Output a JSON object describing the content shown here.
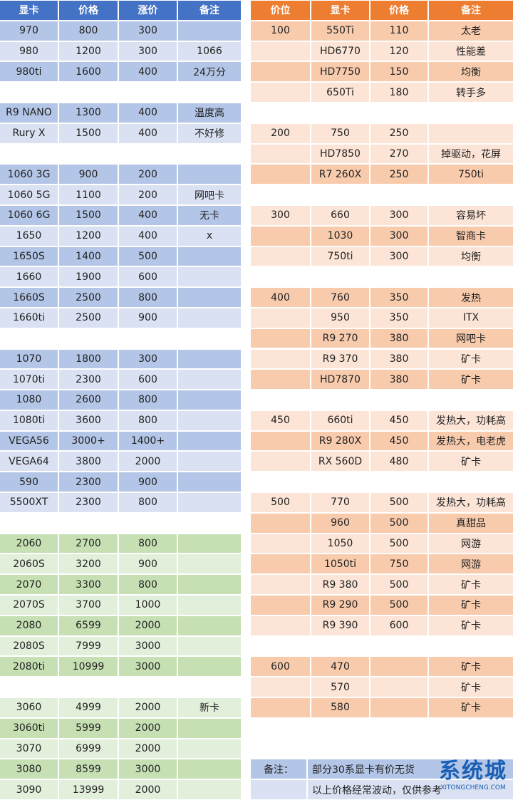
{
  "left_table": {
    "header": [
      "显卡",
      "价格",
      "涨价",
      "备注"
    ],
    "header_color": "#4472c4",
    "groups": [
      {
        "colors": [
          "#b4c6e7",
          "#d9e1f2"
        ],
        "rows": [
          [
            "970",
            "800",
            "300",
            null
          ],
          [
            "980",
            "1200",
            "300",
            "1066"
          ],
          [
            "980ti",
            "1600",
            "400",
            "24万分"
          ]
        ]
      },
      {
        "colors": [
          "#b4c6e7",
          "#d9e1f2"
        ],
        "rows": [
          [
            "R9 NANO",
            "1300",
            "400",
            "温度高"
          ],
          [
            "Rury X",
            "1500",
            "400",
            "不好修"
          ]
        ]
      },
      {
        "colors": [
          "#b4c6e7",
          "#d9e1f2"
        ],
        "rows": [
          [
            "1060 3G",
            "900",
            "200",
            null
          ],
          [
            "1060 5G",
            "1100",
            "200",
            "网吧卡"
          ],
          [
            "1060 6G",
            "1500",
            "400",
            "无卡"
          ],
          [
            "1650",
            "1200",
            "400",
            "x"
          ],
          [
            "1650S",
            "1400",
            "500",
            null
          ],
          [
            "1660",
            "1900",
            "600",
            null
          ],
          [
            "1660S",
            "2500",
            "800",
            null
          ],
          [
            "1660ti",
            "2500",
            "900",
            null
          ]
        ]
      },
      {
        "colors": [
          "#b4c6e7",
          "#d9e1f2"
        ],
        "rows": [
          [
            "1070",
            "1800",
            "300",
            null
          ],
          [
            "1070ti",
            "2300",
            "600",
            null
          ],
          [
            "1080",
            "2600",
            "800",
            null
          ],
          [
            "1080ti",
            "3600",
            "800",
            null
          ],
          [
            "VEGA56",
            "3000+",
            "1400+",
            null
          ],
          [
            "VEGA64",
            "3800",
            "2000",
            null
          ],
          [
            "590",
            "2300",
            "900",
            null
          ],
          [
            "5500XT",
            "2300",
            "800",
            null
          ]
        ]
      },
      {
        "colors": [
          "#c6e0b4",
          "#e2efda"
        ],
        "rows": [
          [
            "2060",
            "2700",
            "800",
            null
          ],
          [
            "2060S",
            "3200",
            "900",
            null
          ],
          [
            "2070",
            "3300",
            "800",
            null
          ],
          [
            "2070S",
            "3700",
            "1000",
            null
          ],
          [
            "2080",
            "6599",
            "2000",
            null
          ],
          [
            "2080S",
            "7999",
            "3000",
            null
          ],
          [
            "2080ti",
            "10999",
            "3000",
            null
          ]
        ]
      },
      {
        "colors": [
          "#e2efda",
          "#c6e0b4"
        ],
        "rows": [
          [
            "3060",
            "4999",
            "2000",
            "新卡"
          ],
          [
            "3060ti",
            "5999",
            "2000",
            null
          ],
          [
            "3070",
            "6999",
            "2000",
            null
          ],
          [
            "3080",
            "8599",
            "3000",
            null
          ],
          [
            "3090",
            "13999",
            "2000",
            null
          ]
        ]
      }
    ]
  },
  "right_table": {
    "header": [
      "价位",
      "显卡",
      "价格",
      "备注"
    ],
    "header_color": "#ed7d31",
    "groups": [
      {
        "colors": [
          "#f8cbad",
          "#fce4d6"
        ],
        "rows": [
          [
            "100",
            "550Ti",
            "110",
            "太老"
          ],
          [
            null,
            "HD6770",
            "120",
            "性能差"
          ],
          [
            null,
            "HD7750",
            "150",
            "均衡"
          ],
          [
            null,
            "650Ti",
            "180",
            "转手多"
          ]
        ]
      },
      {
        "colors": [
          "#fce4d6",
          "#fce4d6",
          "#f8cbad"
        ],
        "rows": [
          [
            "200",
            "750",
            "250",
            null
          ],
          [
            null,
            "HD7850",
            "270",
            "掉驱动，花屏"
          ],
          [
            null,
            "R7  260X",
            "250",
            "750ti"
          ]
        ]
      },
      {
        "colors": [
          "#fce4d6",
          "#f8cbad"
        ],
        "rows": [
          [
            "300",
            "660",
            "300",
            "容易坏"
          ],
          [
            null,
            "1030",
            "300",
            "智商卡"
          ],
          [
            null,
            "750ti",
            "300",
            "均衡"
          ]
        ]
      },
      {
        "colors": [
          "#f8cbad",
          "#fce4d6"
        ],
        "rows": [
          [
            "400",
            "760",
            "350",
            "发热"
          ],
          [
            null,
            "950",
            "350",
            "ITX"
          ],
          [
            null,
            "R9 270",
            "380",
            "网吧卡"
          ],
          [
            null,
            "R9 370",
            "380",
            "矿卡"
          ],
          [
            null,
            "HD7870",
            "380",
            "矿卡"
          ]
        ]
      },
      {
        "colors": [
          "#fce4d6",
          "#f8cbad"
        ],
        "rows": [
          [
            "450",
            "660ti",
            "450",
            "发热大，功耗高"
          ],
          [
            null,
            "R9 280X",
            "450",
            "发热大，电老虎"
          ],
          [
            null,
            "RX 560D",
            "480",
            "矿卡"
          ]
        ]
      },
      {
        "colors": [
          "#fce4d6",
          "#f8cbad"
        ],
        "rows": [
          [
            "500",
            "770",
            "500",
            "发热大，功耗高"
          ],
          [
            null,
            "960",
            "500",
            "真甜品"
          ],
          [
            null,
            "1050",
            "500",
            "网游"
          ],
          [
            null,
            "1050ti",
            "750",
            "网游"
          ],
          [
            null,
            "R9 380",
            "500",
            "矿卡"
          ],
          [
            null,
            "R9 290",
            "500",
            "矿卡"
          ],
          [
            null,
            "R9 390",
            "600",
            "矿卡"
          ]
        ]
      },
      {
        "colors": [
          "#f8cbad",
          "#fce4d6"
        ],
        "rows": [
          [
            "600",
            "470",
            null,
            "矿卡"
          ],
          [
            null,
            "570",
            null,
            "矿卡"
          ],
          [
            null,
            "580",
            null,
            "矿卡"
          ]
        ]
      }
    ]
  },
  "note": {
    "label": "备注：",
    "lines": [
      "部分30系显卡有价无货",
      "以上价格经常波动，仅供参考"
    ],
    "colors": [
      "#b4c6e7",
      "#d9e1f2"
    ]
  },
  "watermark": {
    "title": "系统城",
    "url": "XITONGCHENG.COM"
  }
}
